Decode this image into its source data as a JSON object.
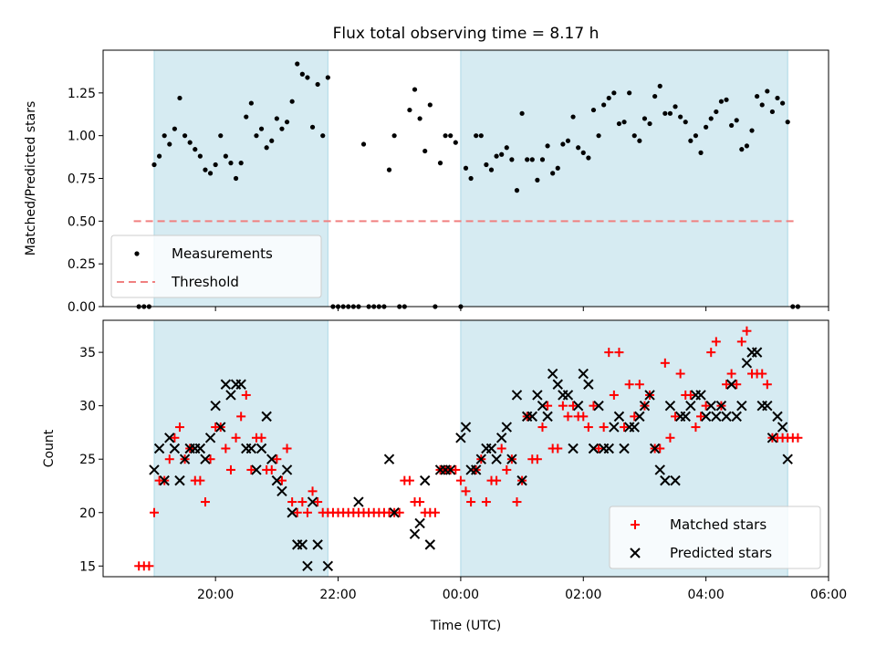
{
  "chart_data": [
    {
      "type": "scatter",
      "title": "Flux total observing time = 8.17 h",
      "xlabel": "",
      "ylabel": "Matched/Predicted stars",
      "ylim": [
        0.0,
        1.5
      ],
      "yticks": [
        "0.00",
        "0.25",
        "0.50",
        "0.75",
        "1.00",
        "1.25"
      ],
      "shaded_intervals": [
        [
          "19:00",
          "21:50"
        ],
        [
          "00:00",
          "05:20"
        ]
      ],
      "threshold": {
        "name": "Threshold",
        "value": 0.5,
        "x_range": [
          "18:40",
          "05:30"
        ],
        "color": "#f08080"
      },
      "legend": {
        "position": "lower-left",
        "entries": [
          "Measurements",
          "Threshold"
        ]
      },
      "series": [
        {
          "name": "Measurements",
          "color": "#000000",
          "marker": "dot",
          "x": [
            "18:45",
            "18:50",
            "18:55",
            "19:00",
            "19:05",
            "19:10",
            "19:15",
            "19:20",
            "19:25",
            "19:30",
            "19:35",
            "19:40",
            "19:45",
            "19:50",
            "19:55",
            "20:00",
            "20:05",
            "20:10",
            "20:15",
            "20:20",
            "20:25",
            "20:30",
            "20:35",
            "20:40",
            "20:45",
            "20:50",
            "20:55",
            "21:00",
            "21:05",
            "21:10",
            "21:15",
            "21:20",
            "21:25",
            "21:30",
            "21:35",
            "21:40",
            "21:45",
            "21:50",
            "21:55",
            "22:00",
            "22:05",
            "22:10",
            "22:15",
            "22:20",
            "22:25",
            "22:30",
            "22:35",
            "22:40",
            "22:45",
            "22:50",
            "22:55",
            "23:00",
            "23:05",
            "23:10",
            "23:15",
            "23:20",
            "23:25",
            "23:30",
            "23:35",
            "23:40",
            "23:45",
            "23:50",
            "23:55",
            "00:00",
            "00:05",
            "00:10",
            "00:15",
            "00:20",
            "00:25",
            "00:30",
            "00:35",
            "00:40",
            "00:45",
            "00:50",
            "00:55",
            "01:00",
            "01:05",
            "01:10",
            "01:15",
            "01:20",
            "01:25",
            "01:30",
            "01:35",
            "01:40",
            "01:45",
            "01:50",
            "01:55",
            "02:00",
            "02:05",
            "02:10",
            "02:15",
            "02:20",
            "02:25",
            "02:30",
            "02:35",
            "02:40",
            "02:45",
            "02:50",
            "02:55",
            "03:00",
            "03:05",
            "03:10",
            "03:15",
            "03:20",
            "03:25",
            "03:30",
            "03:35",
            "03:40",
            "03:45",
            "03:50",
            "03:55",
            "04:00",
            "04:05",
            "04:10",
            "04:15",
            "04:20",
            "04:25",
            "04:30",
            "04:35",
            "04:40",
            "04:45",
            "04:50",
            "04:55",
            "05:00",
            "05:05",
            "05:10",
            "05:15",
            "05:20",
            "05:25",
            "05:30"
          ],
          "values": [
            0.0,
            0.0,
            0.0,
            0.83,
            0.88,
            1.0,
            0.95,
            1.04,
            1.22,
            1.0,
            0.96,
            0.92,
            0.88,
            0.8,
            0.78,
            0.83,
            1.0,
            0.88,
            0.84,
            0.75,
            0.84,
            1.11,
            1.19,
            1.0,
            1.04,
            0.93,
            0.97,
            1.1,
            1.04,
            1.08,
            1.2,
            1.42,
            1.36,
            1.34,
            1.05,
            1.3,
            1.0,
            1.34,
            0.0,
            0.0,
            0.0,
            0.0,
            0.0,
            0.0,
            0.95,
            0.0,
            0.0,
            0.0,
            0.0,
            0.8,
            1.0,
            0.0,
            0.0,
            1.15,
            1.27,
            1.1,
            0.91,
            1.18,
            0.0,
            0.84,
            1.0,
            1.0,
            0.96,
            0.0,
            0.81,
            0.75,
            1.0,
            1.0,
            0.83,
            0.8,
            0.88,
            0.89,
            0.93,
            0.86,
            0.68,
            1.13,
            0.86,
            0.86,
            0.74,
            0.86,
            0.94,
            0.78,
            0.81,
            0.95,
            0.97,
            1.11,
            0.93,
            0.9,
            0.87,
            1.15,
            1.0,
            1.18,
            1.22,
            1.25,
            1.07,
            1.08,
            1.25,
            1.0,
            0.97,
            1.1,
            1.07,
            1.23,
            1.29,
            1.13,
            1.13,
            1.17,
            1.11,
            1.08,
            0.97,
            1.0,
            0.9,
            1.05,
            1.1,
            1.14,
            1.2,
            1.21,
            1.06,
            1.09,
            0.92,
            0.94,
            1.03,
            1.23,
            1.18,
            1.26,
            1.14,
            1.22,
            1.19,
            1.08,
            0.0,
            0.0
          ]
        }
      ]
    },
    {
      "type": "scatter",
      "xlabel": "Time (UTC)",
      "ylabel": "Count",
      "xlim": [
        "18:10",
        "06:00"
      ],
      "ylim": [
        14,
        38
      ],
      "xticks": [
        "20:00",
        "22:00",
        "00:00",
        "02:00",
        "04:00",
        "06:00"
      ],
      "yticks": [
        "15",
        "20",
        "25",
        "30",
        "35"
      ],
      "shaded_intervals": [
        [
          "19:00",
          "21:50"
        ],
        [
          "00:00",
          "05:20"
        ]
      ],
      "legend": {
        "position": "lower-right",
        "entries": [
          "Matched stars",
          "Predicted stars"
        ]
      },
      "x": [
        "18:45",
        "18:50",
        "18:55",
        "19:00",
        "19:05",
        "19:10",
        "19:15",
        "19:20",
        "19:25",
        "19:30",
        "19:35",
        "19:40",
        "19:45",
        "19:50",
        "19:55",
        "20:00",
        "20:05",
        "20:10",
        "20:15",
        "20:20",
        "20:25",
        "20:30",
        "20:35",
        "20:40",
        "20:45",
        "20:50",
        "20:55",
        "21:00",
        "21:05",
        "21:10",
        "21:15",
        "21:20",
        "21:25",
        "21:30",
        "21:35",
        "21:40",
        "21:45",
        "21:50",
        "21:55",
        "22:00",
        "22:05",
        "22:10",
        "22:15",
        "22:20",
        "22:25",
        "22:30",
        "22:35",
        "22:40",
        "22:45",
        "22:50",
        "22:55",
        "23:00",
        "23:05",
        "23:10",
        "23:15",
        "23:20",
        "23:25",
        "23:30",
        "23:35",
        "23:40",
        "23:45",
        "23:50",
        "23:55",
        "00:00",
        "00:05",
        "00:10",
        "00:15",
        "00:20",
        "00:25",
        "00:30",
        "00:35",
        "00:40",
        "00:45",
        "00:50",
        "00:55",
        "01:00",
        "01:05",
        "01:10",
        "01:15",
        "01:20",
        "01:25",
        "01:30",
        "01:35",
        "01:40",
        "01:45",
        "01:50",
        "01:55",
        "02:00",
        "02:05",
        "02:10",
        "02:15",
        "02:20",
        "02:25",
        "02:30",
        "02:35",
        "02:40",
        "02:45",
        "02:50",
        "02:55",
        "03:00",
        "03:05",
        "03:10",
        "03:15",
        "03:20",
        "03:25",
        "03:30",
        "03:35",
        "03:40",
        "03:45",
        "03:50",
        "03:55",
        "04:00",
        "04:05",
        "04:10",
        "04:15",
        "04:20",
        "04:25",
        "04:30",
        "04:35",
        "04:40",
        "04:45",
        "04:50",
        "04:55",
        "05:00",
        "05:05",
        "05:10",
        "05:15",
        "05:20",
        "05:25",
        "05:30"
      ],
      "series": [
        {
          "name": "Matched stars",
          "color": "#ff0000",
          "marker": "plus",
          "values": [
            15,
            15,
            15,
            20,
            23,
            23,
            25,
            27,
            28,
            25,
            26,
            23,
            23,
            21,
            25,
            28,
            28,
            26,
            24,
            27,
            29,
            31,
            24,
            27,
            27,
            24,
            24,
            25,
            23,
            26,
            21,
            20,
            21,
            20,
            22,
            21,
            20,
            20,
            20,
            20,
            20,
            20,
            20,
            20,
            20,
            20,
            20,
            20,
            20,
            20,
            20,
            20,
            23,
            23,
            21,
            21,
            20,
            20,
            20,
            24,
            24,
            24,
            24,
            23,
            22,
            21,
            24,
            25,
            21,
            23,
            23,
            26,
            24,
            25,
            21,
            23,
            29,
            25,
            25,
            28,
            30,
            26,
            26,
            30,
            29,
            30,
            29,
            29,
            28,
            30,
            26,
            28,
            35,
            31,
            35,
            28,
            32,
            29,
            32,
            30,
            31,
            26,
            26,
            34,
            27,
            29,
            33,
            31,
            31,
            28,
            29,
            30,
            35,
            36,
            30,
            32,
            33,
            32,
            36,
            37,
            33,
            33,
            33,
            32,
            27,
            27,
            27,
            27,
            27,
            27
          ],
          "marker_x_count": 130
        },
        {
          "name": "Predicted stars",
          "color": "#000000",
          "marker": "x",
          "points": [
            [
              "19:00",
              24
            ],
            [
              "19:05",
              26
            ],
            [
              "19:10",
              23
            ],
            [
              "19:15",
              27
            ],
            [
              "19:20",
              26
            ],
            [
              "19:25",
              23
            ],
            [
              "19:30",
              25
            ],
            [
              "19:35",
              26
            ],
            [
              "19:40",
              26
            ],
            [
              "19:45",
              26
            ],
            [
              "19:50",
              25
            ],
            [
              "19:55",
              27
            ],
            [
              "20:00",
              30
            ],
            [
              "20:05",
              28
            ],
            [
              "20:10",
              32
            ],
            [
              "20:15",
              31
            ],
            [
              "20:20",
              32
            ],
            [
              "20:25",
              32
            ],
            [
              "20:30",
              26
            ],
            [
              "20:35",
              26
            ],
            [
              "20:40",
              24
            ],
            [
              "20:45",
              26
            ],
            [
              "20:50",
              29
            ],
            [
              "20:55",
              25
            ],
            [
              "21:00",
              23
            ],
            [
              "21:05",
              22
            ],
            [
              "21:10",
              24
            ],
            [
              "21:15",
              20
            ],
            [
              "21:20",
              17
            ],
            [
              "21:25",
              17
            ],
            [
              "21:30",
              15
            ],
            [
              "21:35",
              21
            ],
            [
              "21:40",
              17
            ],
            [
              "21:50",
              15
            ],
            [
              "22:20",
              21
            ],
            [
              "22:50",
              25
            ],
            [
              "22:55",
              20
            ],
            [
              "23:15",
              18
            ],
            [
              "23:20",
              19
            ],
            [
              "23:25",
              23
            ],
            [
              "23:30",
              17
            ],
            [
              "23:40",
              24
            ],
            [
              "23:45",
              24
            ],
            [
              "23:50",
              24
            ],
            [
              "00:00",
              27
            ],
            [
              "00:05",
              28
            ],
            [
              "00:10",
              24
            ],
            [
              "00:15",
              24
            ],
            [
              "00:20",
              25
            ],
            [
              "00:25",
              26
            ],
            [
              "00:30",
              26
            ],
            [
              "00:35",
              25
            ],
            [
              "00:40",
              27
            ],
            [
              "00:45",
              28
            ],
            [
              "00:50",
              25
            ],
            [
              "00:55",
              31
            ],
            [
              "01:00",
              23
            ],
            [
              "01:05",
              29
            ],
            [
              "01:10",
              29
            ],
            [
              "01:15",
              31
            ],
            [
              "01:20",
              30
            ],
            [
              "01:25",
              29
            ],
            [
              "01:30",
              33
            ],
            [
              "01:35",
              32
            ],
            [
              "01:40",
              31
            ],
            [
              "01:45",
              31
            ],
            [
              "01:50",
              26
            ],
            [
              "01:55",
              30
            ],
            [
              "02:00",
              33
            ],
            [
              "02:05",
              32
            ],
            [
              "02:10",
              26
            ],
            [
              "02:15",
              30
            ],
            [
              "02:20",
              26
            ],
            [
              "02:25",
              26
            ],
            [
              "02:30",
              28
            ],
            [
              "02:35",
              29
            ],
            [
              "02:40",
              26
            ],
            [
              "02:45",
              28
            ],
            [
              "02:50",
              28
            ],
            [
              "02:55",
              29
            ],
            [
              "03:00",
              30
            ],
            [
              "03:05",
              31
            ],
            [
              "03:10",
              26
            ],
            [
              "03:15",
              24
            ],
            [
              "03:20",
              23
            ],
            [
              "03:25",
              30
            ],
            [
              "03:30",
              23
            ],
            [
              "03:35",
              29
            ],
            [
              "03:40",
              29
            ],
            [
              "03:45",
              30
            ],
            [
              "03:50",
              31
            ],
            [
              "03:55",
              31
            ],
            [
              "04:00",
              29
            ],
            [
              "04:05",
              30
            ],
            [
              "04:10",
              29
            ],
            [
              "04:15",
              30
            ],
            [
              "04:20",
              29
            ],
            [
              "04:25",
              32
            ],
            [
              "04:30",
              29
            ],
            [
              "04:35",
              30
            ],
            [
              "04:40",
              34
            ],
            [
              "04:45",
              35
            ],
            [
              "04:50",
              35
            ],
            [
              "04:55",
              30
            ],
            [
              "05:00",
              30
            ],
            [
              "05:05",
              27
            ],
            [
              "05:10",
              29
            ],
            [
              "05:15",
              28
            ],
            [
              "05:20",
              25
            ]
          ]
        }
      ]
    }
  ]
}
